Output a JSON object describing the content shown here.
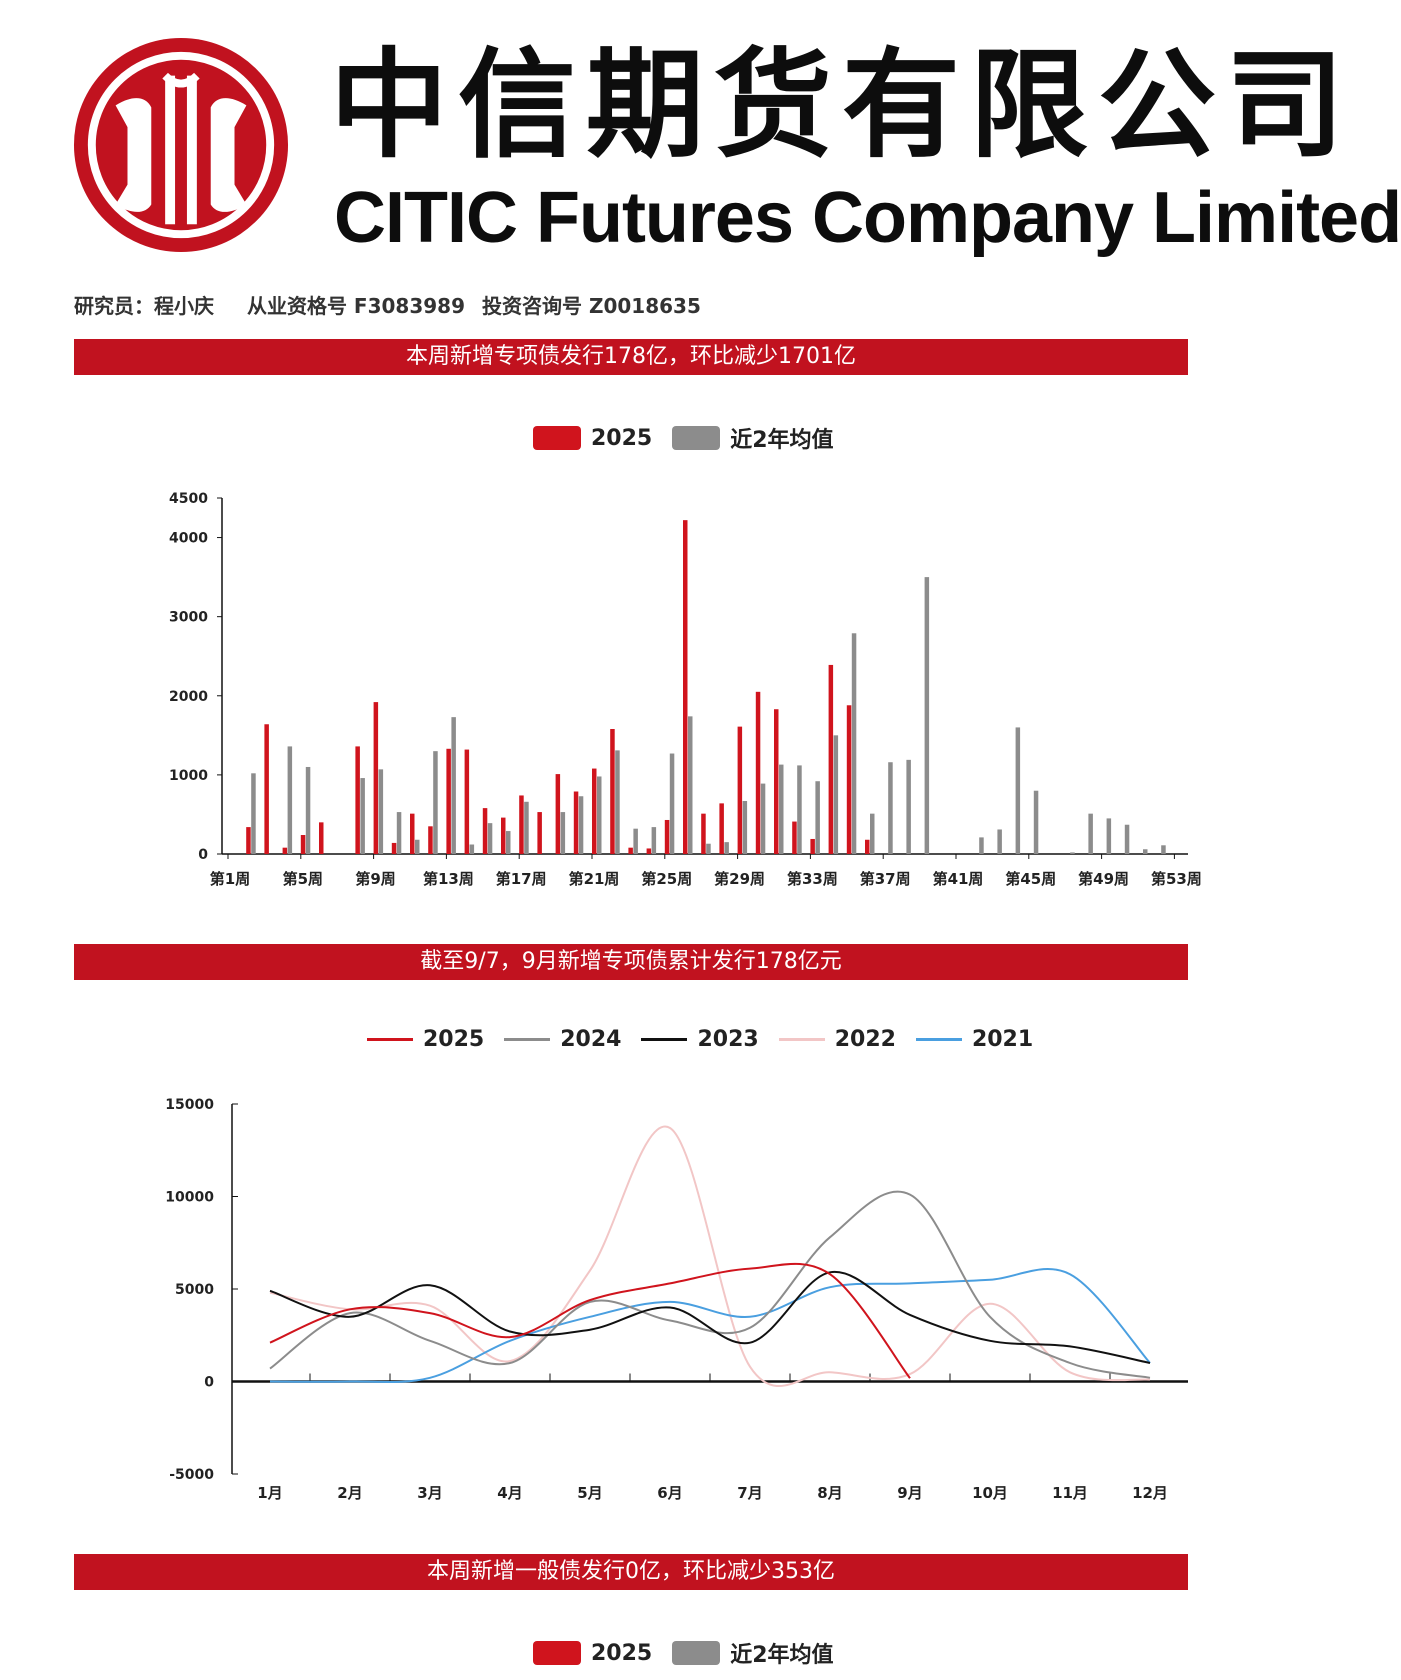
{
  "header": {
    "company_cn": "中信期货有限公司",
    "company_en": "CITIC Futures Company Limited",
    "researcher": "研究员：程小庆",
    "license": "从业资格号 F3083989",
    "advisory": "投资咨询号 Z0018635"
  },
  "colors": {
    "brand": "#c1121f",
    "gray": "#8c8c8c",
    "black": "#111111",
    "pink": "#f2c6c6",
    "blue": "#4a9fe0"
  },
  "sections": [
    {
      "banner": "本周新增专项债发行178亿，环比减少1701亿"
    },
    {
      "banner": "截至9/7，9月新增专项债累计发行178亿元"
    },
    {
      "banner": "本周新增一般债发行0亿，环比减少353亿"
    }
  ],
  "chart_data": [
    {
      "type": "bar",
      "legend": [
        "2025",
        "近2年均值"
      ],
      "legend_position": "top-center",
      "ylim": [
        0,
        4500
      ],
      "yticks": [
        0,
        1000,
        2000,
        3000,
        4000,
        4500
      ],
      "xtick_labels": [
        "第1周",
        "第5周",
        "第9周",
        "第13周",
        "第17周",
        "第21周",
        "第25周",
        "第29周",
        "第33周",
        "第37周",
        "第41周",
        "第45周",
        "第49周",
        "第53周"
      ],
      "categories": [
        1,
        2,
        3,
        4,
        5,
        6,
        7,
        8,
        9,
        10,
        11,
        12,
        13,
        14,
        15,
        16,
        17,
        18,
        19,
        20,
        21,
        22,
        23,
        24,
        25,
        26,
        27,
        28,
        29,
        30,
        31,
        32,
        33,
        34,
        35,
        36,
        37,
        38,
        39,
        40,
        41,
        42,
        43,
        44,
        45,
        46,
        47,
        48,
        49,
        50,
        51,
        52,
        53
      ],
      "series": [
        {
          "name": "2025",
          "color": "#d0141d",
          "values": [
            0,
            340,
            1640,
            80,
            240,
            400,
            0,
            1360,
            1920,
            140,
            510,
            350,
            1330,
            1320,
            580,
            460,
            740,
            530,
            1010,
            790,
            1080,
            1580,
            80,
            70,
            430,
            4220,
            510,
            640,
            1610,
            2050,
            1830,
            410,
            190,
            2390,
            1880,
            180,
            0,
            0,
            0,
            0,
            0,
            0,
            0,
            0,
            0,
            0,
            0,
            0,
            0,
            0,
            0,
            0,
            0
          ]
        },
        {
          "name": "近2年均值",
          "color": "#8c8c8c",
          "values": [
            0,
            1020,
            0,
            1360,
            1100,
            0,
            0,
            960,
            1070,
            530,
            180,
            1300,
            1730,
            120,
            390,
            290,
            660,
            0,
            530,
            730,
            980,
            1310,
            320,
            340,
            1270,
            1740,
            130,
            150,
            670,
            890,
            1130,
            1120,
            920,
            1500,
            2790,
            510,
            1160,
            1190,
            3500,
            0,
            0,
            210,
            310,
            1600,
            800,
            0,
            20,
            510,
            450,
            370,
            60,
            110,
            0
          ]
        }
      ]
    },
    {
      "type": "line",
      "legend": [
        "2025",
        "2024",
        "2023",
        "2022",
        "2021"
      ],
      "legend_position": "top-center",
      "categories": [
        "1月",
        "2月",
        "3月",
        "4月",
        "5月",
        "6月",
        "7月",
        "8月",
        "9月",
        "10月",
        "11月",
        "12月"
      ],
      "ylim": [
        -5000,
        15000
      ],
      "yticks": [
        -5000,
        0,
        5000,
        10000,
        15000
      ],
      "series": [
        {
          "name": "2025",
          "color": "#d0141d",
          "values": [
            2100,
            3900,
            3700,
            2400,
            4400,
            5300,
            6100,
            5800,
            178,
            null,
            null,
            null
          ]
        },
        {
          "name": "2024",
          "color": "#8c8c8c",
          "values": [
            700,
            3700,
            2200,
            1000,
            4300,
            3300,
            2900,
            7800,
            10100,
            3500,
            1000,
            200
          ]
        },
        {
          "name": "2023",
          "color": "#111111",
          "values": [
            4900,
            3500,
            5200,
            2700,
            2800,
            4000,
            2100,
            5900,
            3600,
            2200,
            1900,
            1000
          ]
        },
        {
          "name": "2022",
          "color": "#f2c6c6",
          "values": [
            4800,
            3900,
            4100,
            1100,
            6000,
            13700,
            800,
            500,
            400,
            4200,
            500,
            100
          ]
        },
        {
          "name": "2021",
          "color": "#4a9fe0",
          "values": [
            0,
            0,
            200,
            2200,
            3500,
            4300,
            3500,
            5100,
            5300,
            5500,
            5800,
            1000
          ]
        }
      ]
    },
    {
      "type": "bar",
      "legend": [
        "2025",
        "近2年均值"
      ],
      "legend_position": "top-center"
    }
  ]
}
